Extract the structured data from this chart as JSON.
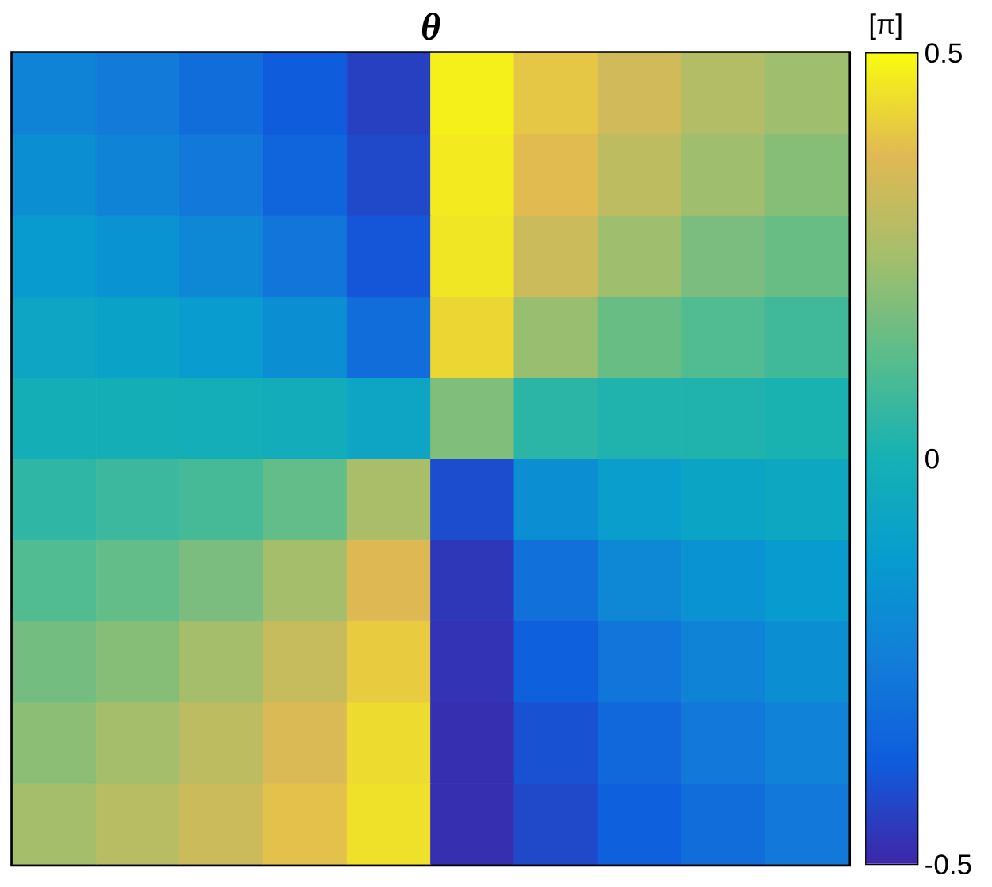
{
  "chart_data": {
    "type": "heatmap",
    "title": "θ",
    "clabel": "[π]",
    "categories": [
      null,
      null,
      null,
      null,
      null,
      null,
      null,
      null,
      null,
      null
    ],
    "y_categories": [
      null,
      null,
      null,
      null,
      null,
      null,
      null,
      null,
      null,
      null
    ],
    "cells": [
      [
        -0.22,
        -0.26,
        -0.31,
        -0.37,
        -0.44,
        0.48,
        0.4,
        0.34,
        0.28,
        0.24
      ],
      [
        -0.18,
        -0.22,
        -0.27,
        -0.34,
        -0.42,
        0.47,
        0.38,
        0.3,
        0.24,
        0.2
      ],
      [
        -0.13,
        -0.16,
        -0.21,
        -0.28,
        -0.39,
        0.46,
        0.33,
        0.24,
        0.18,
        0.15
      ],
      [
        -0.07,
        -0.09,
        -0.12,
        -0.18,
        -0.31,
        0.43,
        0.23,
        0.15,
        0.11,
        0.08
      ],
      [
        -0.01,
        -0.01,
        -0.02,
        -0.03,
        -0.07,
        0.19,
        0.04,
        0.02,
        0.02,
        0.01
      ],
      [
        0.05,
        0.07,
        0.09,
        0.14,
        0.26,
        -0.41,
        -0.18,
        -0.11,
        -0.08,
        -0.06
      ],
      [
        0.11,
        0.14,
        0.18,
        0.25,
        0.37,
        -0.46,
        -0.3,
        -0.21,
        -0.16,
        -0.13
      ],
      [
        0.17,
        0.2,
        0.25,
        0.32,
        0.41,
        -0.47,
        -0.36,
        -0.28,
        -0.22,
        -0.18
      ],
      [
        0.21,
        0.25,
        0.3,
        0.36,
        0.44,
        -0.48,
        -0.4,
        -0.33,
        -0.27,
        -0.23
      ],
      [
        0.25,
        0.29,
        0.33,
        0.39,
        0.45,
        -0.48,
        -0.42,
        -0.36,
        -0.31,
        -0.27
      ]
    ],
    "clim": [
      -0.5,
      0.5
    ],
    "cticks": [
      -0.5,
      0,
      0.5
    ]
  }
}
